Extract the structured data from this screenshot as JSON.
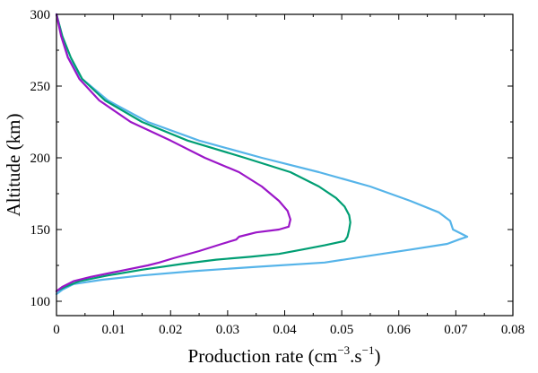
{
  "chart_data": {
    "type": "line",
    "title": "",
    "xlabel": "Production rate (cm",
    "xlabel_sup1": "−3",
    "xlabel_mid": ".s",
    "xlabel_sup2": "−1",
    "xlabel_end": ")",
    "ylabel": "Altitude (km)",
    "xlim": [
      0,
      0.08
    ],
    "ylim": [
      90,
      300
    ],
    "xticks": [
      0,
      0.01,
      0.02,
      0.03,
      0.04,
      0.05,
      0.06,
      0.07,
      0.08
    ],
    "xtick_labels": [
      "0",
      "0.01",
      "0.02",
      "0.03",
      "0.04",
      "0.05",
      "0.06",
      "0.07",
      "0.08"
    ],
    "yticks": [
      100,
      150,
      200,
      250,
      300
    ],
    "ytick_labels": [
      "100",
      "150",
      "200",
      "250",
      "300"
    ],
    "grid": false,
    "legend": "none",
    "series": [
      {
        "color": "#56b4e9",
        "points": [
          [
            0.0,
            300
          ],
          [
            0.001,
            285
          ],
          [
            0.002,
            270
          ],
          [
            0.0045,
            255
          ],
          [
            0.009,
            240
          ],
          [
            0.016,
            225
          ],
          [
            0.025,
            212
          ],
          [
            0.036,
            200
          ],
          [
            0.046,
            190
          ],
          [
            0.055,
            180
          ],
          [
            0.062,
            170
          ],
          [
            0.067,
            162
          ],
          [
            0.069,
            156
          ],
          [
            0.0695,
            150
          ],
          [
            0.072,
            145
          ],
          [
            0.0705,
            143
          ],
          [
            0.0685,
            140
          ],
          [
            0.062,
            136
          ],
          [
            0.057,
            133
          ],
          [
            0.047,
            127
          ],
          [
            0.035,
            124
          ],
          [
            0.024,
            121
          ],
          [
            0.015,
            118
          ],
          [
            0.008,
            115
          ],
          [
            0.003,
            112
          ],
          [
            0.001,
            108
          ],
          [
            0.0,
            105
          ]
        ]
      },
      {
        "color": "#009e73",
        "points": [
          [
            0.0,
            300
          ],
          [
            0.001,
            285
          ],
          [
            0.0025,
            270
          ],
          [
            0.0045,
            255
          ],
          [
            0.0085,
            240
          ],
          [
            0.015,
            225
          ],
          [
            0.023,
            212
          ],
          [
            0.033,
            200
          ],
          [
            0.041,
            190
          ],
          [
            0.046,
            180
          ],
          [
            0.049,
            172
          ],
          [
            0.0505,
            166
          ],
          [
            0.0513,
            160
          ],
          [
            0.0515,
            155
          ],
          [
            0.0513,
            150
          ],
          [
            0.051,
            145
          ],
          [
            0.0505,
            142
          ],
          [
            0.047,
            139
          ],
          [
            0.043,
            136
          ],
          [
            0.039,
            133
          ],
          [
            0.034,
            131
          ],
          [
            0.028,
            129
          ],
          [
            0.022,
            126
          ],
          [
            0.015,
            122
          ],
          [
            0.009,
            118
          ],
          [
            0.004,
            114
          ],
          [
            0.0015,
            110
          ],
          [
            0.0,
            107
          ]
        ]
      },
      {
        "color": "#9b16c8",
        "points": [
          [
            0.0,
            300
          ],
          [
            0.0008,
            285
          ],
          [
            0.002,
            270
          ],
          [
            0.004,
            255
          ],
          [
            0.0075,
            240
          ],
          [
            0.013,
            225
          ],
          [
            0.02,
            212
          ],
          [
            0.026,
            200
          ],
          [
            0.032,
            190
          ],
          [
            0.036,
            180
          ],
          [
            0.039,
            170
          ],
          [
            0.0405,
            163
          ],
          [
            0.041,
            157
          ],
          [
            0.0407,
            152
          ],
          [
            0.039,
            150
          ],
          [
            0.035,
            148
          ],
          [
            0.032,
            145
          ],
          [
            0.0315,
            143
          ],
          [
            0.029,
            140
          ],
          [
            0.025,
            135
          ],
          [
            0.0205,
            130
          ],
          [
            0.018,
            127
          ],
          [
            0.016,
            125
          ],
          [
            0.011,
            121
          ],
          [
            0.006,
            117
          ],
          [
            0.003,
            114
          ],
          [
            0.001,
            110
          ],
          [
            0.0,
            107
          ]
        ]
      }
    ]
  }
}
